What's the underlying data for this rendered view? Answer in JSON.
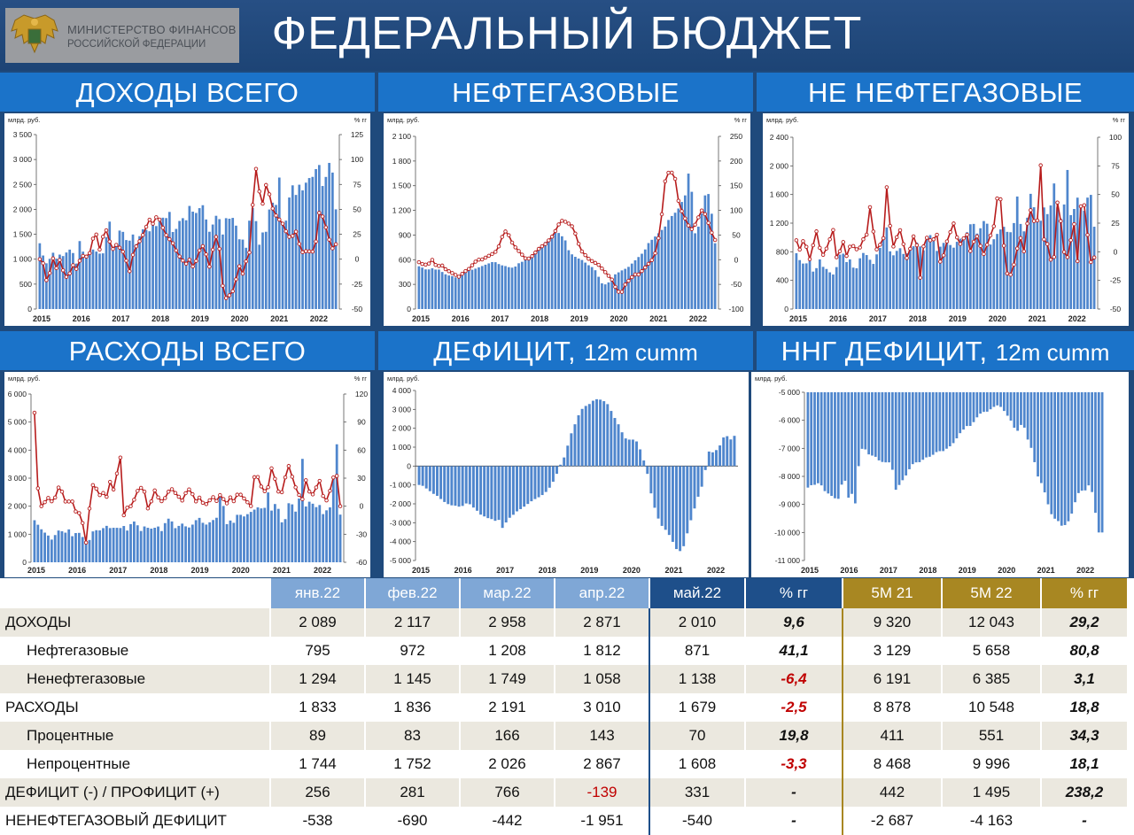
{
  "header": {
    "logo_line1": "МИНИСТЕРСТВО ФИНАНСОВ",
    "logo_line2": "РОССИЙСКОЙ ФЕДЕРАЦИИ",
    "title": "ФЕДЕРАЛЬНЫЙ БЮДЖЕТ"
  },
  "headings": {
    "revenue": "ДОХОДЫ ВСЕГО",
    "oilgas": "НЕФТЕГАЗОВЫЕ",
    "nonoilgas": "НЕ НЕФТЕГАЗОВЫЕ",
    "expenses": "РАСХОДЫ ВСЕГО",
    "deficit_main": "ДЕФИЦИТ,",
    "deficit_sub": "12m cumm",
    "nog_deficit_main": "ННГ ДЕФИЦИТ,",
    "nog_deficit_sub": "12m cumm"
  },
  "colors": {
    "bar": "#4f86cd",
    "line": "#b71c1c",
    "marker_fill": "#ffffff"
  },
  "chart_data": [
    {
      "id": "revenue",
      "type": "bar+line",
      "ylabel": "млрд. руб.",
      "y2label": "% гг",
      "ylim": [
        0,
        3500
      ],
      "yticks": [
        0,
        500,
        1000,
        1500,
        2000,
        2500,
        3000,
        3500
      ],
      "y2lim": [
        -50,
        125
      ],
      "y2ticks": [
        -50,
        -25,
        0,
        25,
        50,
        75,
        100,
        125
      ],
      "xlabels": [
        "2015",
        "2016",
        "2017",
        "2018",
        "2019",
        "2020",
        "2021",
        "2022"
      ],
      "bars_anchor": [
        1320,
        1020,
        860,
        1180,
        1000,
        1100,
        1050,
        1200,
        1180,
        900,
        1450,
        1000,
        1100,
        1200,
        1150,
        1100,
        1130,
        1900,
        1250,
        1300,
        1700,
        1400,
        1350,
        1500,
        1250,
        1600,
        1600,
        1550,
        1700,
        1650,
        1850,
        1800,
        1950,
        1450,
        1700,
        1850,
        1750,
        2100,
        1900,
        1950,
        2150,
        1800,
        1500,
        1800,
        1950,
        1450,
        1850,
        1800,
        1850,
        1400,
        1400,
        1200,
        2050,
        2000,
        1250,
        1550,
        1550,
        2300,
        1900,
        2700,
        1600,
        1850,
        2600,
        2250,
        2500,
        2350,
        2650,
        2600,
        2800,
        2900,
        2300,
        2950,
        2900,
        2000
      ],
      "line_anchor": [
        0,
        -5,
        -30,
        5,
        -10,
        0,
        -15,
        -20,
        -5,
        -10,
        0,
        5,
        0,
        20,
        25,
        5,
        35,
        20,
        10,
        15,
        10,
        5,
        -15,
        5,
        15,
        20,
        30,
        40,
        35,
        45,
        35,
        25,
        20,
        15,
        5,
        0,
        -5,
        0,
        -10,
        5,
        15,
        5,
        -10,
        20,
        25,
        -25,
        -40,
        -35,
        -30,
        -5,
        -15,
        0,
        10,
        100,
        70,
        55,
        80,
        55,
        45,
        40,
        35,
        25,
        20,
        30,
        15,
        5,
        10,
        5,
        15,
        50,
        40,
        25,
        10,
        15
      ]
    },
    {
      "id": "oilgas",
      "type": "bar+line",
      "ylabel": "млрд. руб.",
      "y2label": "% гг",
      "ylim": [
        0,
        2100
      ],
      "yticks": [
        0,
        300,
        600,
        900,
        1200,
        1500,
        1800,
        2100
      ],
      "y2lim": [
        -100,
        250
      ],
      "y2ticks": [
        -100,
        -50,
        0,
        50,
        100,
        150,
        200,
        250
      ],
      "xlabels": [
        "2015",
        "2016",
        "2017",
        "2018",
        "2019",
        "2020",
        "2021",
        "2022"
      ],
      "bars_anchor": [
        520,
        500,
        470,
        500,
        480,
        480,
        430,
        410,
        400,
        380,
        420,
        450,
        470,
        480,
        500,
        520,
        540,
        560,
        580,
        550,
        530,
        520,
        500,
        510,
        560,
        580,
        620,
        650,
        700,
        750,
        800,
        850,
        900,
        950,
        900,
        850,
        700,
        650,
        620,
        600,
        560,
        520,
        500,
        400,
        300,
        300,
        350,
        420,
        450,
        480,
        500,
        550,
        600,
        650,
        700,
        800,
        850,
        900,
        950,
        1000,
        1100,
        1150,
        1200,
        1300,
        1400,
        1800,
        900,
        1000,
        1200,
        1500,
        1250,
        800
      ],
      "line_anchor": [
        -5,
        -10,
        -10,
        0,
        -15,
        -10,
        -20,
        -25,
        -30,
        -35,
        -25,
        -20,
        -10,
        0,
        0,
        5,
        10,
        15,
        30,
        60,
        50,
        30,
        20,
        10,
        0,
        5,
        15,
        25,
        30,
        40,
        50,
        70,
        80,
        75,
        70,
        50,
        20,
        10,
        0,
        -5,
        -10,
        -20,
        -30,
        -40,
        -60,
        -70,
        -50,
        -40,
        -30,
        -30,
        -20,
        -10,
        0,
        20,
        80,
        170,
        180,
        170,
        110,
        90,
        70,
        60,
        80,
        100,
        90,
        60,
        40
      ],
      "line_xstart_frac": 0.0
    },
    {
      "id": "nonoilgas",
      "type": "bar+line",
      "ylabel": "млрд. руб.",
      "y2label": "% гг",
      "ylim": [
        0,
        2400
      ],
      "yticks": [
        0,
        400,
        800,
        1200,
        1600,
        2000,
        2400
      ],
      "y2lim": [
        -50,
        100
      ],
      "y2ticks": [
        -50,
        -25,
        0,
        25,
        50,
        75,
        100
      ],
      "xlabels": [
        "2015",
        "2016",
        "2017",
        "2018",
        "2019",
        "2020",
        "2021",
        "2022"
      ],
      "bars_anchor": [
        780,
        650,
        620,
        700,
        450,
        720,
        580,
        550,
        460,
        600,
        850,
        650,
        700,
        500,
        700,
        800,
        720,
        620,
        800,
        900,
        1150,
        700,
        800,
        850,
        740,
        820,
        880,
        950,
        780,
        1000,
        1050,
        800,
        880,
        950,
        900,
        850,
        1000,
        950,
        1100,
        1250,
        1050,
        1150,
        1300,
        900,
        1000,
        1100,
        1150,
        1050,
        1100,
        1600,
        1000,
        1200,
        1650,
        1300,
        1200,
        1450,
        1250,
        1800,
        1350,
        1200,
        2000,
        1150,
        1600,
        1450,
        1350,
        1750,
        1150
      ],
      "line_anchor": [
        10,
        0,
        15,
        -10,
        5,
        20,
        -5,
        0,
        10,
        20,
        -15,
        15,
        -5,
        5,
        5,
        0,
        10,
        15,
        45,
        0,
        5,
        10,
        65,
        0,
        10,
        20,
        5,
        -10,
        15,
        10,
        -25,
        15,
        10,
        10,
        15,
        -15,
        5,
        15,
        25,
        10,
        5,
        20,
        0,
        10,
        15,
        -5,
        5,
        15,
        25,
        65,
        10,
        -20,
        -20,
        -5,
        15,
        0,
        30,
        40,
        10,
        80,
        0,
        10,
        -25,
        45,
        25,
        -10,
        0,
        30,
        -10,
        55,
        30,
        -10,
        -5
      ]
    },
    {
      "id": "expenses",
      "type": "bar+line",
      "ylabel": "млрд. руб.",
      "y2label": "% гг",
      "ylim": [
        0,
        6000
      ],
      "yticks": [
        0,
        1000,
        2000,
        3000,
        4000,
        5000,
        6000
      ],
      "y2lim": [
        -60,
        120
      ],
      "y2ticks": [
        -60,
        -30,
        0,
        30,
        60,
        90,
        120
      ],
      "xlabels": [
        "2015",
        "2016",
        "2017",
        "2018",
        "2019",
        "2020",
        "2021",
        "2022"
      ],
      "bars_anchor": [
        1500,
        1300,
        1100,
        1000,
        800,
        1000,
        1200,
        1000,
        1200,
        900,
        1100,
        1000,
        700,
        800,
        1200,
        1100,
        1200,
        1300,
        1200,
        1250,
        1200,
        1300,
        1100,
        1500,
        1400,
        1100,
        1300,
        1200,
        1200,
        1300,
        1100,
        1500,
        1600,
        1200,
        1300,
        1400,
        1200,
        1300,
        1500,
        1600,
        1300,
        1400,
        1500,
        1600,
        2700,
        1300,
        1500,
        1400,
        1800,
        1600,
        1700,
        1800,
        1900,
        2000,
        1800,
        2500,
        1700,
        2300,
        1400,
        1500,
        2200,
        2000,
        1600,
        3900,
        1800,
        2300,
        1900,
        2100,
        1700,
        1900,
        2000,
        4800,
        1700
      ],
      "line_anchor": [
        100,
        0,
        0,
        10,
        5,
        10,
        25,
        5,
        5,
        5,
        -10,
        -5,
        -45,
        0,
        30,
        10,
        15,
        10,
        30,
        10,
        70,
        -10,
        0,
        0,
        15,
        20,
        15,
        -10,
        20,
        10,
        5,
        10,
        20,
        15,
        10,
        5,
        20,
        15,
        5,
        10,
        0,
        5,
        10,
        5,
        15,
        0,
        10,
        5,
        15,
        10,
        5,
        0,
        40,
        25,
        15,
        20,
        45,
        20,
        10,
        30,
        45,
        25,
        15,
        5,
        30,
        10,
        15,
        30,
        10,
        5,
        25,
        40,
        0
      ]
    },
    {
      "id": "deficit",
      "type": "bar",
      "ylabel": "млрд. руб.",
      "ylim": [
        -5000,
        4000
      ],
      "yticks": [
        -5000,
        -4000,
        -3000,
        -2000,
        -1000,
        0,
        1000,
        2000,
        3000,
        4000
      ],
      "xlabels": [
        "2015",
        "2016",
        "2017",
        "2018",
        "2019",
        "2020",
        "2021",
        "2022"
      ],
      "bars_anchor": [
        -1000,
        -1050,
        -1200,
        -1350,
        -1500,
        -1600,
        -1800,
        -1950,
        -2050,
        -2100,
        -2100,
        -2200,
        -2000,
        -1950,
        -2150,
        -2300,
        -2550,
        -2650,
        -2750,
        -2800,
        -2900,
        -2850,
        -3300,
        -2950,
        -2700,
        -2550,
        -2350,
        -2250,
        -2100,
        -1950,
        -1800,
        -1700,
        -1600,
        -1450,
        -1250,
        -950,
        -550,
        0,
        350,
        1000,
        1700,
        2200,
        2700,
        3050,
        3200,
        3300,
        3500,
        3550,
        3500,
        3400,
        3200,
        2700,
        2400,
        2000,
        1500,
        1400,
        1400,
        1400,
        1000,
        400,
        -300,
        -1400,
        -2200,
        -2800,
        -3200,
        -3400,
        -3700,
        -4100,
        -4500,
        -4500,
        -4100,
        -3200,
        -2600,
        -1900,
        -1300,
        -800,
        800,
        700,
        800,
        1000,
        1500,
        1600,
        1400,
        1600
      ]
    },
    {
      "id": "nog_deficit",
      "type": "bar",
      "ylabel": "млрд. руб.",
      "ylim": [
        -11000,
        -5000
      ],
      "yticks": [
        -11000,
        -10000,
        -9000,
        -8000,
        -7000,
        -6000,
        -5000
      ],
      "xlabels": [
        "2015",
        "2016",
        "2017",
        "2018",
        "2019",
        "2020",
        "2021",
        "2022"
      ],
      "bars_anchor": [
        -8400,
        -8300,
        -8300,
        -8200,
        -8500,
        -8600,
        -8700,
        -8800,
        -8800,
        -7800,
        -8800,
        -8600,
        -9000,
        -7200,
        -6900,
        -7200,
        -7250,
        -7300,
        -7450,
        -7500,
        -7500,
        -7500,
        -8500,
        -8300,
        -8100,
        -7900,
        -7600,
        -7500,
        -7500,
        -7400,
        -7300,
        -7300,
        -7150,
        -7100,
        -7100,
        -7000,
        -6900,
        -6750,
        -6500,
        -6350,
        -6200,
        -6200,
        -6000,
        -5800,
        -5700,
        -5700,
        -5600,
        -5500,
        -5450,
        -5600,
        -5800,
        -6000,
        -6300,
        -6400,
        -6000,
        -6600,
        -6900,
        -7500,
        -8100,
        -8300,
        -8800,
        -9300,
        -9500,
        -9600,
        -9800,
        -9700,
        -9500,
        -9000,
        -8600,
        -8500,
        -8500,
        -8200,
        -9000,
        -10000,
        -10000
      ]
    }
  ],
  "table": {
    "headers": [
      "",
      "янв.22",
      "фев.22",
      "мар.22",
      "апр.22",
      "май.22",
      "% гг",
      "5M 21",
      "5M 22",
      "% гг"
    ],
    "rows": [
      {
        "label": "ДОХОДЫ",
        "indent": false,
        "cells": [
          "2 089",
          "2 117",
          "2 958",
          "2 871",
          "2 010",
          "9,6",
          "9 320",
          "12 043",
          "29,2"
        ],
        "red": []
      },
      {
        "label": "Нефтегазовые",
        "indent": true,
        "cells": [
          "795",
          "972",
          "1 208",
          "1 812",
          "871",
          "41,1",
          "3 129",
          "5 658",
          "80,8"
        ],
        "red": []
      },
      {
        "label": "Ненефтегазовые",
        "indent": true,
        "cells": [
          "1 294",
          "1 145",
          "1 749",
          "1 058",
          "1 138",
          "-6,4",
          "6 191",
          "6 385",
          "3,1"
        ],
        "red": [
          5
        ]
      },
      {
        "label": "РАСХОДЫ",
        "indent": false,
        "cells": [
          "1 833",
          "1 836",
          "2 191",
          "3 010",
          "1 679",
          "-2,5",
          "8 878",
          "10 548",
          "18,8"
        ],
        "red": [
          5
        ]
      },
      {
        "label": "Процентные",
        "indent": true,
        "cells": [
          "89",
          "83",
          "166",
          "143",
          "70",
          "19,8",
          "411",
          "551",
          "34,3"
        ],
        "red": []
      },
      {
        "label": "Непроцентные",
        "indent": true,
        "cells": [
          "1 744",
          "1 752",
          "2 026",
          "2 867",
          "1 608",
          "-3,3",
          "8 468",
          "9 996",
          "18,1"
        ],
        "red": [
          5
        ]
      },
      {
        "label": "ДЕФИЦИТ (-) / ПРОФИЦИТ (+)",
        "indent": false,
        "cells": [
          "256",
          "281",
          "766",
          "-139",
          "331",
          "-",
          "442",
          "1 495",
          "238,2"
        ],
        "red": [
          3
        ]
      },
      {
        "label": "НЕНЕФТЕГАЗОВЫЙ ДЕФИЦИТ",
        "indent": false,
        "cells": [
          "-538",
          "-690",
          "-442",
          "-1 951",
          "-540",
          "-",
          "-2 687",
          "-4 163",
          "-"
        ],
        "red": []
      }
    ]
  }
}
